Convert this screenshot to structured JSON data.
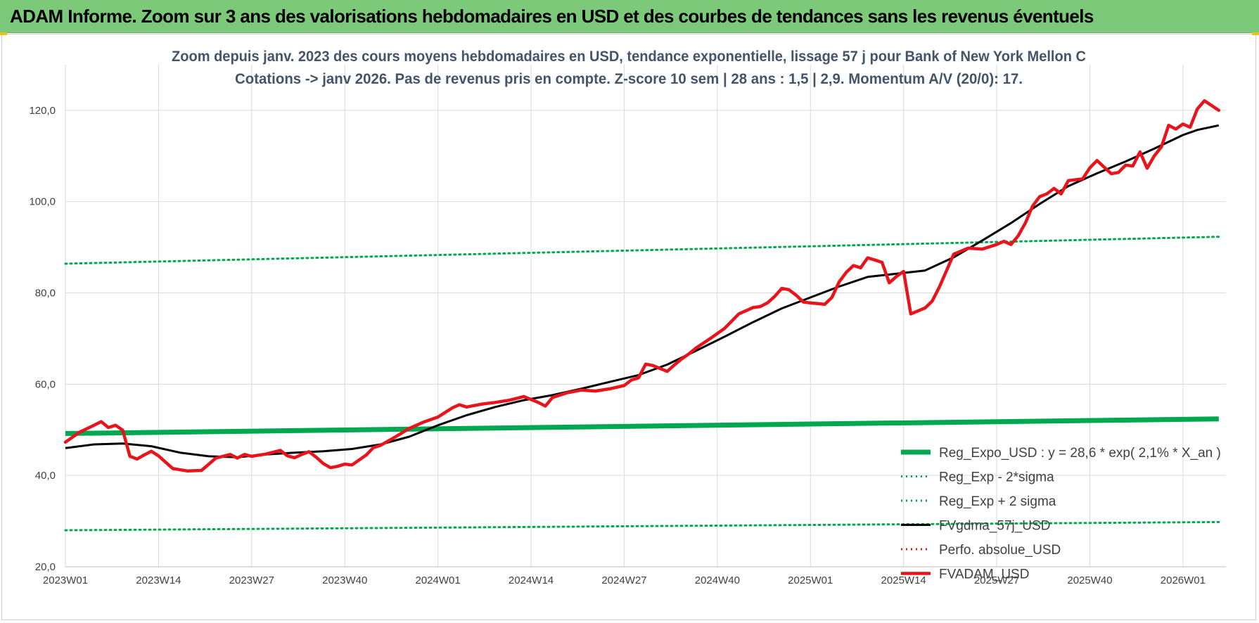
{
  "banner": {
    "title": "ADAM Informe. Zoom sur 3 ans des valorisations hebdomadaires en USD et des courbes de tendances sans les revenus éventuels"
  },
  "chart_data": {
    "type": "line",
    "title_line1": "Zoom depuis janv. 2023 des cours moyens hebdomadaires en USD, tendance exponentielle, lissage 57 j pour Bank of New York Mellon C",
    "title_line2": "Cotations -> janv 2026. Pas de revenus pris en compte. Z-score 10 sem | 28 ans : 1,5 | 2,9. Momentum A/V (20/0): 17.",
    "xlabel": "",
    "ylabel": "",
    "ylim": [
      20,
      130
    ],
    "yticks": [
      "20,0",
      "40,0",
      "60,0",
      "80,0",
      "100,0",
      "120,0"
    ],
    "ytick_values": [
      20,
      40,
      60,
      80,
      100,
      120
    ],
    "x_range": [
      0,
      162
    ],
    "xticks": [
      "2023W01",
      "2023W14",
      "2023W27",
      "2023W40",
      "2024W01",
      "2024W14",
      "2024W27",
      "2024W40",
      "2025W01",
      "2025W14",
      "2025W27",
      "2025W40",
      "2026W01"
    ],
    "xtick_positions": [
      0,
      13,
      26,
      39,
      52,
      65,
      78,
      91,
      104,
      117,
      130,
      143,
      156
    ],
    "grid": true,
    "legend_position": "right",
    "colors": {
      "green": "#00a84f",
      "black": "#000000",
      "red": "#e8131b",
      "grid": "#d9d9d9",
      "title": "#44546a",
      "tick": "#404040"
    },
    "legend": [
      {
        "name": "Reg_Expo_USD : y = 28,6 * exp( 2,1% * X_an )",
        "style": "thick",
        "color": "#00a84f"
      },
      {
        "name": "Reg_Exp - 2*sigma",
        "style": "dotted",
        "color": "#00a84f"
      },
      {
        "name": "Reg_Exp + 2 sigma",
        "style": "dotted",
        "color": "#00a84f"
      },
      {
        "name": "FVgdma_57j_USD",
        "style": "solid",
        "color": "#000000"
      },
      {
        "name": "Perfo. absolue_USD",
        "style": "dotted",
        "color": "#e8131b"
      },
      {
        "name": "FVADAM_USD",
        "style": "thick",
        "color": "#e8131b"
      }
    ],
    "series": [
      {
        "name": "Reg_Expo_USD : y = 28,6 * exp( 2,1% * X_an )",
        "kind": "reg",
        "color": "#00a84f",
        "x": [
          0,
          161
        ],
        "y": [
          49.2,
          52.4
        ]
      },
      {
        "name": "Reg_Exp - 2*sigma",
        "kind": "upper",
        "color": "#00a84f",
        "x": [
          0,
          161
        ],
        "y": [
          28.0,
          29.8
        ]
      },
      {
        "name": "Reg_Exp + 2 sigma",
        "kind": "lower",
        "color": "#00a84f",
        "x": [
          0,
          161
        ],
        "y": [
          86.4,
          92.3
        ]
      },
      {
        "name": "FVgdma_57j_USD",
        "kind": "fvgdma",
        "color": "#000000",
        "x": [
          0,
          4,
          8,
          12,
          16,
          20,
          24,
          28,
          32,
          36,
          40,
          44,
          48,
          52,
          56,
          60,
          64,
          68,
          72,
          76,
          80,
          84,
          88,
          92,
          96,
          100,
          104,
          108,
          112,
          116,
          120,
          124,
          128,
          132,
          136,
          140,
          144,
          148,
          152,
          156,
          158,
          161
        ],
        "y": [
          46.0,
          46.8,
          47.0,
          46.4,
          45.0,
          44.2,
          44.0,
          44.6,
          45.0,
          45.3,
          45.8,
          46.8,
          48.5,
          51.0,
          53.2,
          55.0,
          56.5,
          57.6,
          59.0,
          60.5,
          62.0,
          64.3,
          67.3,
          70.4,
          73.6,
          76.6,
          79.0,
          81.4,
          83.5,
          84.2,
          84.9,
          87.8,
          91.5,
          95.3,
          99.5,
          103.4,
          106.2,
          108.8,
          111.6,
          114.6,
          115.7,
          116.7
        ]
      },
      {
        "name": "FVADAM_USD",
        "kind": "fvadam",
        "color": "#e8131b",
        "x": [
          0,
          2,
          4,
          5,
          6,
          7,
          8,
          9,
          10,
          11,
          12,
          13,
          14,
          15,
          17,
          19,
          21,
          23,
          24,
          25,
          26,
          28,
          30,
          31,
          32,
          33,
          34,
          35,
          36,
          37,
          38,
          39,
          40,
          42,
          43,
          44,
          46,
          48,
          50,
          52,
          54,
          55,
          56,
          58,
          60,
          62,
          64,
          66,
          67,
          68,
          70,
          72,
          74,
          76,
          78,
          79,
          80,
          81,
          82,
          84,
          85,
          86,
          87,
          88,
          90,
          92,
          94,
          96,
          97,
          98,
          99,
          100,
          101,
          102,
          103,
          104,
          106,
          107,
          108,
          109,
          110,
          111,
          112,
          113,
          114,
          115,
          116,
          117,
          118,
          120,
          121,
          122,
          124,
          126,
          128,
          130,
          131,
          132,
          133,
          134,
          135,
          136,
          137,
          138,
          139,
          140,
          141,
          142,
          143,
          144,
          146,
          147,
          148,
          149,
          150,
          151,
          152,
          153,
          154,
          155,
          156,
          157,
          158,
          159,
          161
        ],
        "y": [
          47.3,
          49.5,
          51.0,
          51.8,
          50.5,
          51.0,
          49.9,
          44.2,
          43.6,
          44.5,
          45.3,
          44.3,
          42.9,
          41.5,
          41.0,
          41.1,
          43.8,
          44.6,
          43.8,
          44.6,
          44.2,
          44.7,
          45.5,
          44.3,
          43.9,
          44.6,
          45.2,
          44.0,
          42.6,
          41.7,
          42.0,
          42.5,
          42.3,
          44.5,
          46.1,
          46.6,
          48.4,
          50.3,
          51.7,
          52.8,
          54.8,
          55.5,
          55.0,
          55.6,
          56.0,
          56.5,
          57.3,
          56.0,
          55.2,
          57.1,
          58.1,
          58.7,
          58.5,
          59.0,
          59.7,
          60.9,
          61.4,
          64.4,
          64.1,
          62.8,
          64.2,
          65.5,
          66.6,
          67.9,
          70.0,
          72.2,
          75.4,
          76.8,
          77.0,
          77.8,
          79.2,
          81.0,
          80.7,
          79.5,
          78.0,
          77.8,
          77.5,
          79.0,
          82.4,
          84.5,
          86.0,
          85.5,
          87.7,
          87.2,
          86.7,
          82.2,
          83.6,
          84.7,
          75.4,
          76.7,
          78.2,
          81.3,
          88.5,
          89.8,
          89.6,
          90.6,
          91.3,
          90.6,
          92.5,
          95.3,
          99.0,
          101.1,
          101.7,
          102.9,
          101.7,
          104.6,
          104.8,
          105.0,
          107.4,
          109.0,
          106.1,
          106.4,
          108.0,
          107.8,
          110.9,
          107.3,
          110.0,
          112.0,
          116.7,
          115.9,
          117.0,
          116.3,
          120.3,
          122.1,
          120.0
        ]
      }
    ]
  }
}
